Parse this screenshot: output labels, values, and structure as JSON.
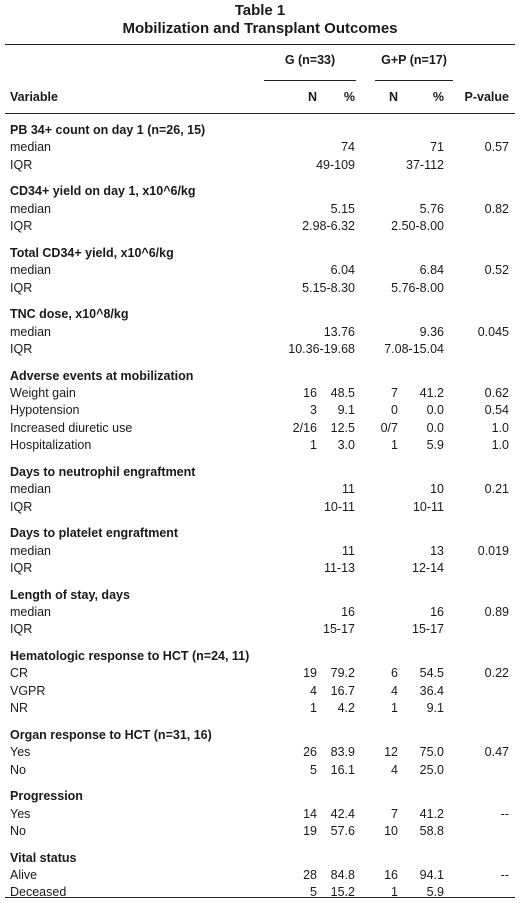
{
  "title_line1": "Table  1",
  "title_line2": "Mobilization and Transplant Outcomes",
  "groups": [
    "G (n=33)",
    "G+P (n=17)"
  ],
  "columns": [
    "Variable",
    "N",
    "%",
    "N",
    "%",
    "P-value"
  ],
  "sections": [
    {
      "heading": "PB 34+ count on day 1 (n=26, 15)",
      "rows": [
        [
          "median",
          "",
          "74",
          "",
          "71",
          "0.57"
        ],
        [
          "IQR",
          "",
          "49-109",
          "",
          "37-112",
          ""
        ]
      ]
    },
    {
      "heading": "CD34+ yield on day 1, x10^6/kg",
      "rows": [
        [
          "median",
          "",
          "5.15",
          "",
          "5.76",
          "0.82"
        ],
        [
          "IQR",
          "",
          "2.98-6.32",
          "",
          "2.50-8.00",
          ""
        ]
      ]
    },
    {
      "heading": "Total CD34+ yield, x10^6/kg",
      "rows": [
        [
          "median",
          "",
          "6.04",
          "",
          "6.84",
          "0.52"
        ],
        [
          "IQR",
          "",
          "5.15-8.30",
          "",
          "5.76-8.00",
          ""
        ]
      ]
    },
    {
      "heading": "TNC dose, x10^8/kg",
      "rows": [
        [
          "median",
          "",
          "13.76",
          "",
          "9.36",
          "0.045"
        ],
        [
          "IQR",
          "",
          "10.36-19.68",
          "",
          "7.08-15.04",
          ""
        ]
      ]
    },
    {
      "heading": "Adverse events at mobilization",
      "rows": [
        [
          "Weight gain",
          "16",
          "48.5",
          "7",
          "41.2",
          "0.62"
        ],
        [
          "Hypotension",
          "3",
          "9.1",
          "0",
          "0.0",
          "0.54"
        ],
        [
          "Increased diuretic use",
          "2/16",
          "12.5",
          "0/7",
          "0.0",
          "1.0"
        ],
        [
          "Hospitalization",
          "1",
          "3.0",
          "1",
          "5.9",
          "1.0"
        ]
      ]
    },
    {
      "heading": "Days to neutrophil engraftment",
      "rows": [
        [
          "median",
          "",
          "11",
          "",
          "10",
          "0.21"
        ],
        [
          "IQR",
          "",
          "10-11",
          "",
          "10-11",
          ""
        ]
      ]
    },
    {
      "heading": "Days to platelet engraftment",
      "rows": [
        [
          "median",
          "",
          "11",
          "",
          "13",
          "0.019"
        ],
        [
          "IQR",
          "",
          "11-13",
          "",
          "12-14",
          ""
        ]
      ]
    },
    {
      "heading": "Length of stay, days",
      "rows": [
        [
          "median",
          "",
          "16",
          "",
          "16",
          "0.89"
        ],
        [
          "IQR",
          "",
          "15-17",
          "",
          "15-17",
          ""
        ]
      ]
    },
    {
      "heading": "Hematologic response to HCT (n=24, 11)",
      "rows": [
        [
          "CR",
          "19",
          "79.2",
          "6",
          "54.5",
          "0.22"
        ],
        [
          "VGPR",
          "4",
          "16.7",
          "4",
          "36.4",
          ""
        ],
        [
          "NR",
          "1",
          "4.2",
          "1",
          "9.1",
          ""
        ]
      ]
    },
    {
      "heading": "Organ response to HCT (n=31, 16)",
      "rows": [
        [
          "Yes",
          "26",
          "83.9",
          "12",
          "75.0",
          "0.47"
        ],
        [
          "No",
          "5",
          "16.1",
          "4",
          "25.0",
          ""
        ]
      ]
    },
    {
      "heading": "Progression",
      "rows": [
        [
          "Yes",
          "14",
          "42.4",
          "7",
          "41.2",
          "--"
        ],
        [
          "No",
          "19",
          "57.6",
          "10",
          "58.8",
          ""
        ]
      ]
    },
    {
      "heading": "Vital status",
      "rows": [
        [
          "Alive",
          "28",
          "84.8",
          "16",
          "94.1",
          "--"
        ],
        [
          "Deceased",
          "5",
          "15.2",
          "1",
          "5.9",
          ""
        ]
      ]
    }
  ]
}
